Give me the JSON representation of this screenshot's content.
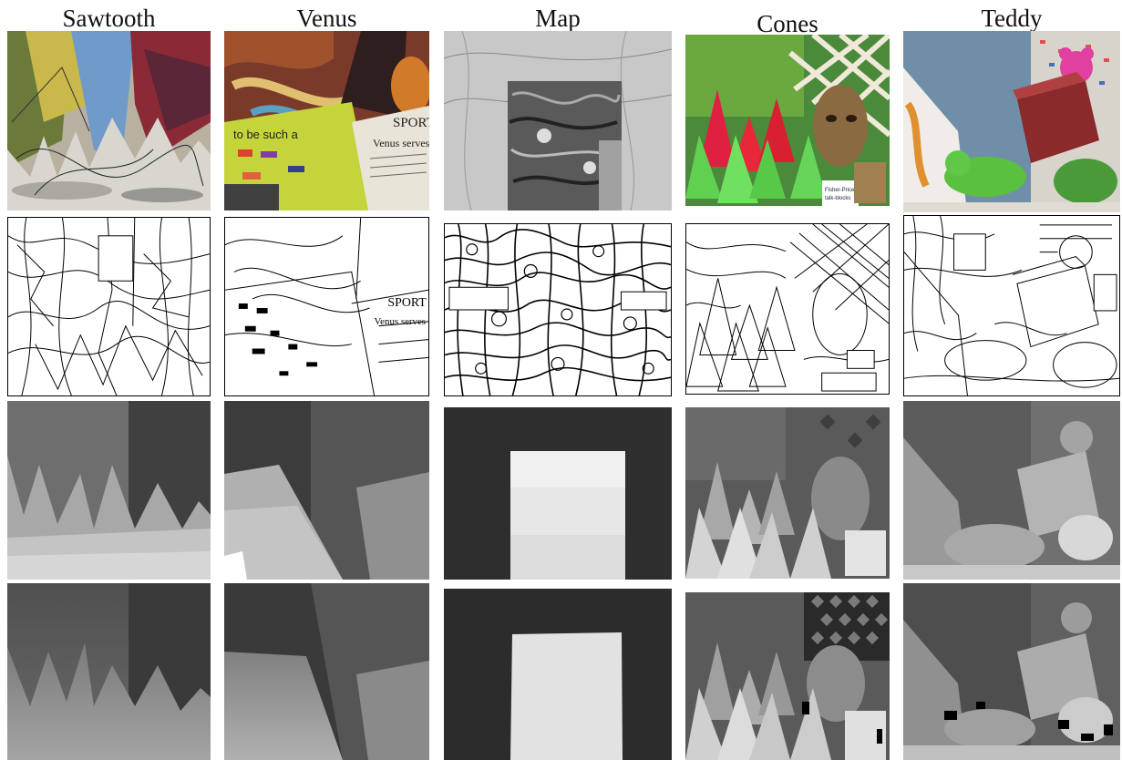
{
  "columns": [
    {
      "id": "sawtooth",
      "title": "Sawtooth"
    },
    {
      "id": "venus",
      "title": "Venus"
    },
    {
      "id": "map",
      "title": "Map"
    },
    {
      "id": "cones",
      "title": "Cones"
    },
    {
      "id": "teddy",
      "title": "Teddy"
    }
  ],
  "rows": [
    "input-image",
    "segmentation-edges",
    "estimated-disparity",
    "ground-truth-disparity"
  ],
  "image_text": {
    "venus_poster": "to be such a",
    "venus_newspaper_header": "SPORT",
    "venus_newspaper_headline": "Venus serves",
    "cones_box_brand": "Fisher-Price",
    "cones_box_caption": "talk-blocks"
  }
}
